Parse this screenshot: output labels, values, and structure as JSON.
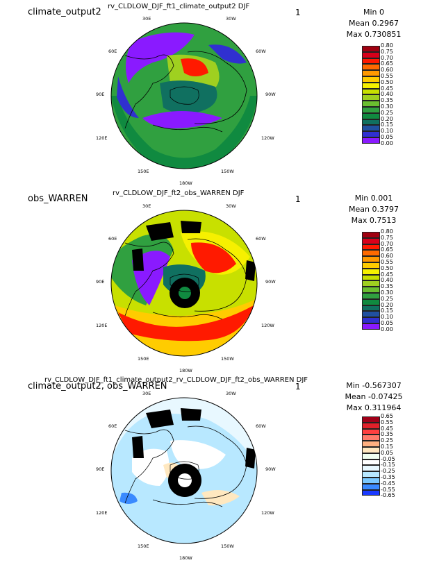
{
  "panels": [
    {
      "label": "climate_output2",
      "title": "rv_CLDLOW_DJF_ft1_climate_output2  DJF",
      "number": "1",
      "stats": {
        "min": "Min 0",
        "mean": "Mean 0.2967",
        "max": "Max 0.730851"
      },
      "colorbar": {
        "labels": [
          "0.80",
          "0.75",
          "0.70",
          "0.65",
          "0.60",
          "0.55",
          "0.50",
          "0.45",
          "0.40",
          "0.35",
          "0.30",
          "0.25",
          "0.20",
          "0.15",
          "0.10",
          "0.05",
          "0.00"
        ],
        "colors": [
          "#a00010",
          "#d8001a",
          "#ff1a00",
          "#ff6a00",
          "#ff9900",
          "#ffcc00",
          "#f6f000",
          "#c8e000",
          "#9fd020",
          "#6abf30",
          "#30a040",
          "#108a40",
          "#107060",
          "#2050a0",
          "#3030d0",
          "#8a1aff"
        ]
      },
      "map_labels": [
        "30E",
        "30W",
        "60E",
        "60W",
        "90E",
        "90W",
        "120E",
        "120W",
        "150E",
        "150W",
        "180W"
      ]
    },
    {
      "label": "obs_WARREN",
      "title": "rv_CLDLOW_DJF_ft2_obs_WARREN  DJF",
      "number": "1",
      "stats": {
        "min": "Min 0.001",
        "mean": "Mean 0.3797",
        "max": "Max 0.7513"
      },
      "colorbar": {
        "labels": [
          "0.80",
          "0.75",
          "0.70",
          "0.65",
          "0.60",
          "0.55",
          "0.50",
          "0.45",
          "0.40",
          "0.35",
          "0.30",
          "0.25",
          "0.20",
          "0.15",
          "0.10",
          "0.05",
          "0.00"
        ],
        "colors": [
          "#a00010",
          "#d8001a",
          "#ff1a00",
          "#ff6a00",
          "#ff9900",
          "#ffcc00",
          "#f6f000",
          "#c8e000",
          "#9fd020",
          "#6abf30",
          "#30a040",
          "#108a40",
          "#107060",
          "#2050a0",
          "#3030d0",
          "#8a1aff"
        ]
      },
      "map_labels": [
        "30E",
        "30W",
        "60E",
        "60W",
        "90E",
        "90W",
        "120E",
        "120W",
        "150E",
        "150W",
        "180W"
      ]
    },
    {
      "label": "climate_output2, obs_WARREN",
      "title": "rv_CLDLOW_DJF_ft1_climate_output2_rv_CLDLOW_DJF_ft2_obs_WARREN  DJF",
      "number": "1",
      "stats": {
        "min": "Min -0.567307",
        "mean": "Mean -0.07425",
        "max": "Max 0.311964"
      },
      "colorbar": {
        "labels": [
          "0.65",
          "0.55",
          "0.45",
          "0.35",
          "0.25",
          "0.15",
          "0.05",
          "-0.05",
          "-0.15",
          "-0.25",
          "-0.35",
          "-0.45",
          "-0.55",
          "-0.65"
        ],
        "colors": [
          "#a00018",
          "#e0202a",
          "#ff4040",
          "#ff7a6a",
          "#ffb080",
          "#ffe8c0",
          "#f0fff0",
          "#ffffff",
          "#e8f8ff",
          "#b8e8ff",
          "#7ac8ff",
          "#3a8aff",
          "#1a3aff"
        ]
      },
      "map_labels": [
        "30E",
        "30W",
        "60E",
        "60W",
        "90E",
        "90W",
        "120E",
        "120W",
        "150E",
        "150W",
        "180W"
      ]
    }
  ]
}
